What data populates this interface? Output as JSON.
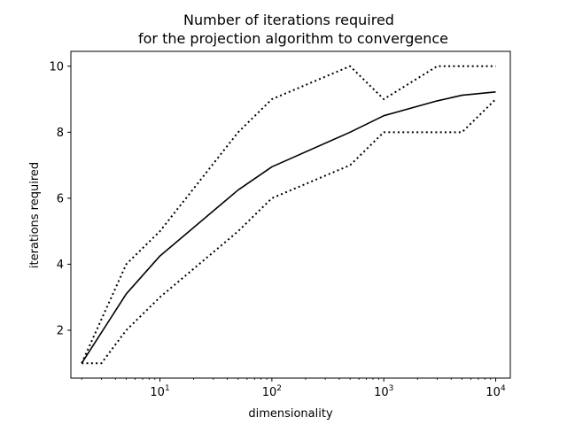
{
  "chart_data": {
    "type": "line",
    "title_line1": "Number of iterations required",
    "title_line2": "for the projection algorithm to convergence",
    "xlabel": "dimensionality",
    "ylabel": "iterations required",
    "x_scale": "log",
    "xlim": [
      1.6,
      13500
    ],
    "ylim": [
      0.55,
      10.45
    ],
    "grid": false,
    "x_ticks": [
      {
        "value": 10,
        "base": "10",
        "exp": "1"
      },
      {
        "value": 100,
        "base": "10",
        "exp": "2"
      },
      {
        "value": 1000,
        "base": "10",
        "exp": "3"
      },
      {
        "value": 10000,
        "base": "10",
        "exp": "4"
      }
    ],
    "y_ticks": [
      {
        "value": 2,
        "label": "2"
      },
      {
        "value": 4,
        "label": "4"
      },
      {
        "value": 6,
        "label": "6"
      },
      {
        "value": 8,
        "label": "8"
      },
      {
        "value": 10,
        "label": "10"
      }
    ],
    "series": [
      {
        "style": "solid",
        "x": [
          2,
          5,
          10,
          50,
          100,
          500,
          1000,
          3000,
          5000,
          10000
        ],
        "y": [
          1,
          3.1,
          4.25,
          6.25,
          6.95,
          8.0,
          8.5,
          8.95,
          9.12,
          9.22
        ]
      },
      {
        "style": "dotted",
        "x": [
          2,
          5,
          10,
          50,
          100,
          500,
          1000,
          3000,
          5000,
          10000
        ],
        "y": [
          1,
          4.0,
          5.0,
          8.0,
          9.0,
          10,
          9.0,
          10,
          10,
          10
        ]
      },
      {
        "style": "dotted",
        "x": [
          2,
          3,
          5,
          10,
          50,
          100,
          500,
          1000,
          3000,
          5000,
          10000
        ],
        "y": [
          1,
          1,
          2.0,
          3.0,
          5.0,
          6.0,
          7.0,
          8.0,
          8.0,
          8.0,
          9.0
        ]
      }
    ]
  }
}
